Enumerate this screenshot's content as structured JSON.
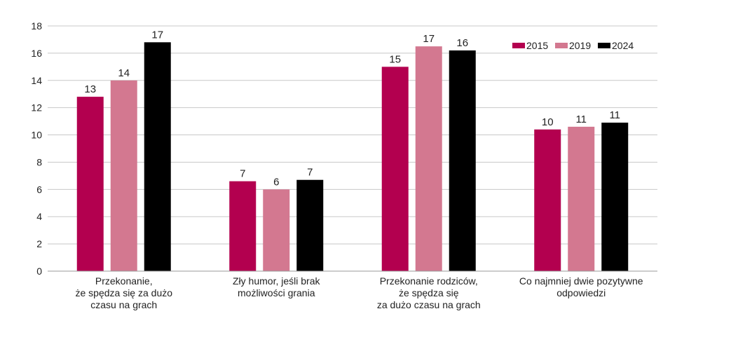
{
  "chart_data": {
    "type": "bar",
    "title": "",
    "xlabel": "",
    "ylabel": "",
    "ylim": [
      0,
      18
    ],
    "yticks": [
      0,
      2,
      4,
      6,
      8,
      10,
      12,
      14,
      16,
      18
    ],
    "grid": true,
    "legend_position": "top-right",
    "categories": [
      [
        "Przekonanie,",
        "że spędza się za dużo",
        "czasu na grach"
      ],
      [
        "Zły humor, jeśli brak",
        "możliwości grania"
      ],
      [
        "Przekonanie rodziców,",
        "że spędza się",
        "za dużo czasu na grach"
      ],
      [
        "Co najmniej dwie pozytywne",
        "odpowiedzi"
      ]
    ],
    "series": [
      {
        "name": "2015",
        "color": "#b3004f",
        "values": [
          12.8,
          6.6,
          15.0,
          10.4
        ],
        "labels": [
          "13",
          "7",
          "15",
          "10"
        ]
      },
      {
        "name": "2019",
        "color": "#d37890",
        "values": [
          14.0,
          6.0,
          16.5,
          10.6
        ],
        "labels": [
          "14",
          "6",
          "17",
          "11"
        ]
      },
      {
        "name": "2024",
        "color": "#000000",
        "values": [
          16.8,
          6.7,
          16.2,
          10.9
        ],
        "labels": [
          "17",
          "7",
          "16",
          "11"
        ]
      }
    ]
  }
}
